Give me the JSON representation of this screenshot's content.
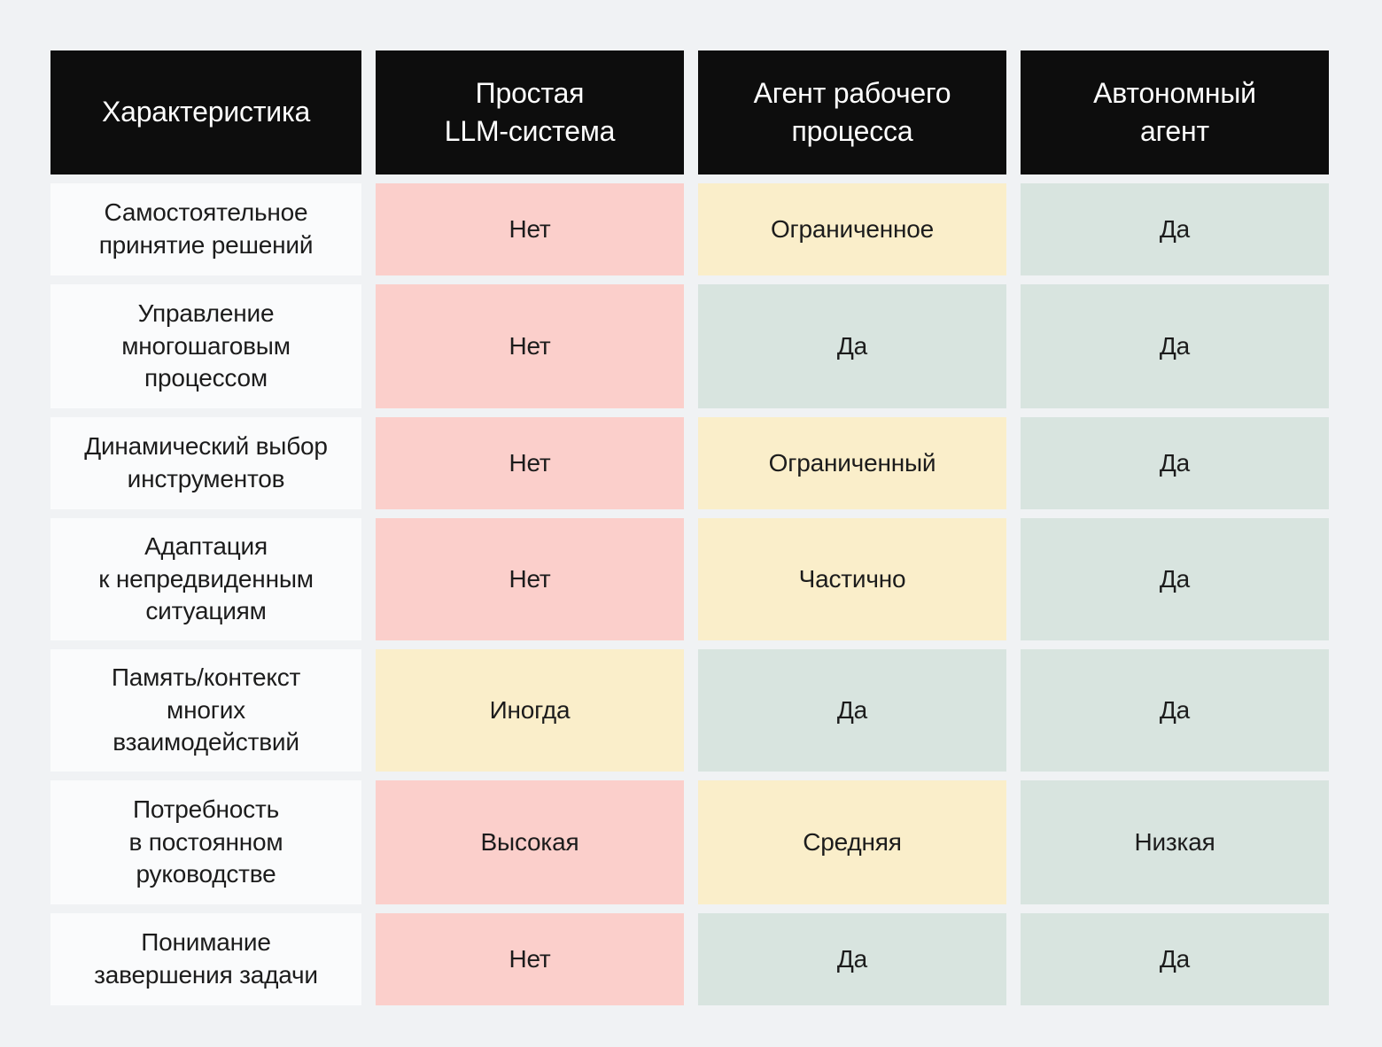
{
  "colors": {
    "negative": "#fbcfcb",
    "partial": "#faeeca",
    "positive": "#d8e4df",
    "header-bg": "#0d0d0d",
    "header-text": "#ffffff",
    "feature-bg": "#fafbfc",
    "page-bg": "#f0f2f4",
    "text": "#1c1c1c"
  },
  "table": {
    "headers": [
      {
        "label": "Характеристика"
      },
      {
        "label": "Простая\nLLM-система"
      },
      {
        "label": "Агент рабочего\nпроцесса"
      },
      {
        "label": "Автономный\nагент"
      }
    ],
    "rows": [
      {
        "feature": "Самостоятельное\nпринятие решений",
        "cells": [
          {
            "text": "Нет",
            "status": "negative"
          },
          {
            "text": "Ограниченное",
            "status": "partial"
          },
          {
            "text": "Да",
            "status": "positive"
          }
        ]
      },
      {
        "feature": "Управление\nмногошаговым\nпроцессом",
        "cells": [
          {
            "text": "Нет",
            "status": "negative"
          },
          {
            "text": "Да",
            "status": "positive"
          },
          {
            "text": "Да",
            "status": "positive"
          }
        ]
      },
      {
        "feature": "Динамический выбор\nинструментов",
        "cells": [
          {
            "text": "Нет",
            "status": "negative"
          },
          {
            "text": "Ограниченный",
            "status": "partial"
          },
          {
            "text": "Да",
            "status": "positive"
          }
        ]
      },
      {
        "feature": "Адаптация\nк непредвиденным\nситуациям",
        "cells": [
          {
            "text": "Нет",
            "status": "negative"
          },
          {
            "text": "Частично",
            "status": "partial"
          },
          {
            "text": "Да",
            "status": "positive"
          }
        ]
      },
      {
        "feature": "Память/контекст\nмногих\nвзаимодействий",
        "cells": [
          {
            "text": "Иногда",
            "status": "partial"
          },
          {
            "text": "Да",
            "status": "positive"
          },
          {
            "text": "Да",
            "status": "positive"
          }
        ]
      },
      {
        "feature": "Потребность\nв постоянном\nруководстве",
        "cells": [
          {
            "text": "Высокая",
            "status": "negative"
          },
          {
            "text": "Средняя",
            "status": "partial"
          },
          {
            "text": "Низкая",
            "status": "positive"
          }
        ]
      },
      {
        "feature": "Понимание\nзавершения задачи",
        "cells": [
          {
            "text": "Нет",
            "status": "negative"
          },
          {
            "text": "Да",
            "status": "positive"
          },
          {
            "text": "Да",
            "status": "positive"
          }
        ]
      }
    ]
  },
  "chart_data": {
    "type": "table",
    "columns": [
      "Характеристика",
      "Простая LLM-система",
      "Агент рабочего процесса",
      "Автономный агент"
    ],
    "rows": [
      [
        "Самостоятельное принятие решений",
        "Нет",
        "Ограниченное",
        "Да"
      ],
      [
        "Управление многошаговым процессом",
        "Нет",
        "Да",
        "Да"
      ],
      [
        "Динамический выбор инструментов",
        "Нет",
        "Ограниченный",
        "Да"
      ],
      [
        "Адаптация к непредвиденным ситуациям",
        "Нет",
        "Частично",
        "Да"
      ],
      [
        "Память/контекст многих взаимодействий",
        "Иногда",
        "Да",
        "Да"
      ],
      [
        "Потребность в постоянном руководстве",
        "Высокая",
        "Средняя",
        "Низкая"
      ],
      [
        "Понимание завершения задачи",
        "Нет",
        "Да",
        "Да"
      ]
    ],
    "cell_statuses": [
      [
        "negative",
        "partial",
        "positive"
      ],
      [
        "negative",
        "positive",
        "positive"
      ],
      [
        "negative",
        "partial",
        "positive"
      ],
      [
        "negative",
        "partial",
        "positive"
      ],
      [
        "partial",
        "positive",
        "positive"
      ],
      [
        "negative",
        "partial",
        "positive"
      ],
      [
        "negative",
        "positive",
        "positive"
      ]
    ],
    "legend": {
      "negative_color": "#fbcfcb",
      "partial_color": "#faeeca",
      "positive_color": "#d8e4df"
    }
  }
}
